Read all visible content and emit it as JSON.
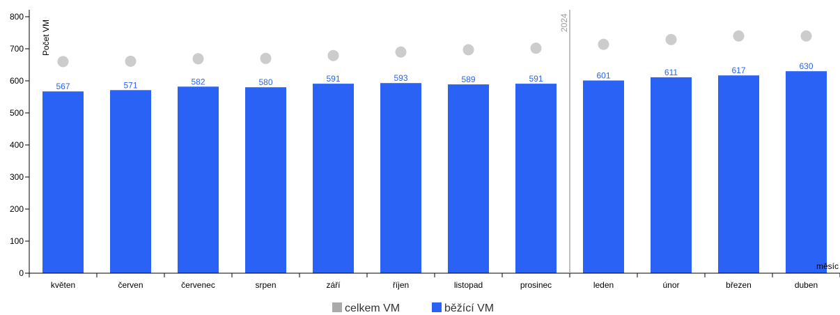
{
  "chart_data": {
    "type": "bar",
    "categories": [
      "květen",
      "červen",
      "červenec",
      "srpen",
      "září",
      "říjen",
      "listopad",
      "prosinec",
      "leden",
      "únor",
      "březen",
      "duben"
    ],
    "series": [
      {
        "name": "celkem VM",
        "kind": "scatter",
        "color": "#cccccc",
        "values": [
          660,
          661,
          669,
          670,
          679,
          690,
          697,
          702,
          714,
          729,
          740,
          740
        ]
      },
      {
        "name": "běžící VM",
        "kind": "bar",
        "color": "#2962f5",
        "values": [
          567,
          571,
          582,
          580,
          591,
          593,
          589,
          591,
          601,
          611,
          617,
          630
        ]
      }
    ],
    "value_labels": [
      "567",
      "571",
      "582",
      "580",
      "591",
      "593",
      "589",
      "591",
      "601",
      "611",
      "617",
      "630"
    ],
    "ylabel": "Počet VM",
    "xlabel": "měsíc",
    "ylim": [
      0,
      800
    ],
    "yticks": [
      "0",
      "100",
      "200",
      "300",
      "400",
      "500",
      "600",
      "700",
      "800"
    ],
    "ytick_values": [
      0,
      100,
      200,
      300,
      400,
      500,
      600,
      700,
      800
    ],
    "annotation": {
      "text": "2024",
      "after_category": "prosinec"
    },
    "legend_position": "bottom",
    "grid": false
  }
}
